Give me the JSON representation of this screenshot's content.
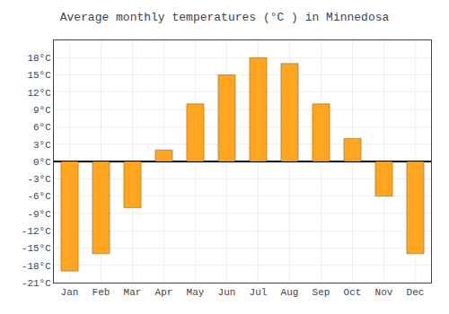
{
  "chart_data": {
    "type": "bar",
    "title": "Average monthly temperatures (°C ) in Minnedosa",
    "categories": [
      "Jan",
      "Feb",
      "Mar",
      "Apr",
      "May",
      "Jun",
      "Jul",
      "Aug",
      "Sep",
      "Oct",
      "Nov",
      "Dec"
    ],
    "values": [
      -19,
      -16,
      -8,
      2,
      10,
      15,
      18,
      17,
      10,
      4,
      -6,
      -16
    ],
    "color": "#FFA520",
    "ylim": [
      -21,
      21
    ],
    "yticks": [
      {
        "value": -21,
        "label": "-21°C"
      },
      {
        "value": -18,
        "label": "-18°C"
      },
      {
        "value": -15,
        "label": "-15°C"
      },
      {
        "value": -12,
        "label": "-12°C"
      },
      {
        "value": -9,
        "label": "-9°C"
      },
      {
        "value": -6,
        "label": "-6°C"
      },
      {
        "value": -3,
        "label": "-3°C"
      },
      {
        "value": 0,
        "label": "0°C"
      },
      {
        "value": 3,
        "label": "3°C"
      },
      {
        "value": 6,
        "label": "6°C"
      },
      {
        "value": 9,
        "label": "9°C"
      },
      {
        "value": 12,
        "label": "12°C"
      },
      {
        "value": 15,
        "label": "15°C"
      },
      {
        "value": 18,
        "label": "18°C"
      }
    ],
    "grid": true
  }
}
